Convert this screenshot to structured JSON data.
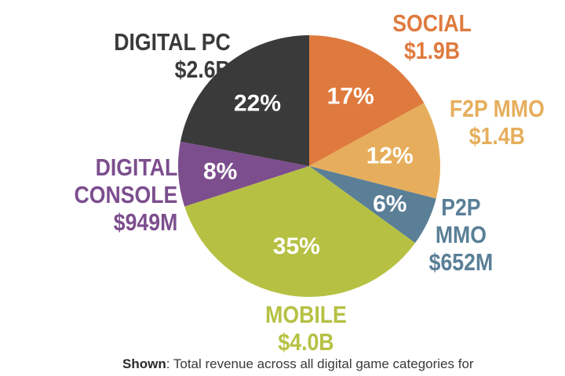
{
  "chart_data": {
    "type": "pie",
    "slices": [
      {
        "label": "SOCIAL",
        "value_text": "$1.9B",
        "percent": 17,
        "percent_text": "17%",
        "color": "#df7a3e"
      },
      {
        "label": "F2P MMO",
        "value_text": "$1.4B",
        "percent": 12,
        "percent_text": "12%",
        "color": "#e6ae5c"
      },
      {
        "label": "P2P MMO",
        "value_text": "$652M",
        "percent": 6,
        "percent_text": "6%",
        "color": "#5a7f97"
      },
      {
        "label": "MOBILE",
        "value_text": "$4.0B",
        "percent": 35,
        "percent_text": "35%",
        "color": "#b6c143"
      },
      {
        "label": "DIGITAL CONSOLE",
        "value_text": "$949M",
        "percent": 8,
        "percent_text": "8%",
        "color": "#7c4e8e"
      },
      {
        "label": "DIGITAL PC",
        "value_text": "$2.6B",
        "percent": 22,
        "percent_text": "22%",
        "color": "#3b3a3a"
      }
    ]
  },
  "labels": {
    "digital_pc": {
      "line1": "DIGITAL PC",
      "line2": "$2.6B",
      "color": "#3b3a3a"
    },
    "social": {
      "line1": "SOCIAL",
      "line2": "$1.9B",
      "color": "#df7a3e"
    },
    "f2p_mmo": {
      "line1": "F2P MMO",
      "line2": "$1.4B",
      "color": "#e6ae5c"
    },
    "p2p_mmo": {
      "line1": "P2P",
      "line2": "MMO",
      "line3": "$652M",
      "color": "#5a7f97"
    },
    "mobile": {
      "line1": "MOBILE",
      "line2": "$4.0B",
      "color": "#b6c143"
    },
    "digital_console": {
      "line1": "DIGITAL",
      "line2": "CONSOLE",
      "line3": "$949M",
      "color": "#7c4e8e"
    }
  },
  "caption": {
    "bold": "Shown",
    "text": ": Total revenue across all digital game categories for"
  }
}
